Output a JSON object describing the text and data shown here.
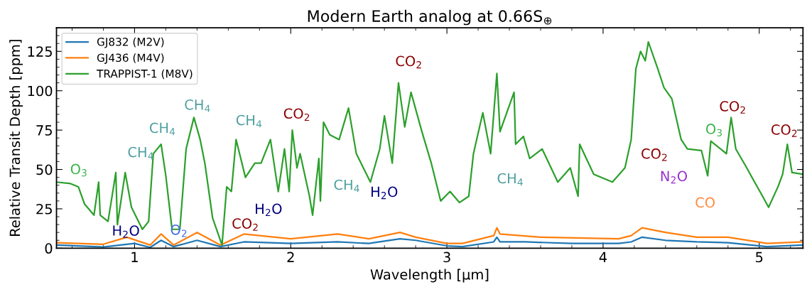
{
  "chart_data": {
    "type": "line",
    "title": "Modern Earth analog at 0.66S$_{⊕}$",
    "xlabel": "Wavelength [μm]",
    "ylabel": "Relative Transit Depth [ppm]",
    "xlim": [
      0.5,
      5.28
    ],
    "ylim": [
      0,
      140
    ],
    "xticks": [
      1,
      2,
      3,
      4,
      5
    ],
    "yticks": [
      0,
      25,
      50,
      75,
      100,
      125
    ],
    "grid": false,
    "legend": "top left",
    "series": [
      {
        "name": "GJ832 (M2V)",
        "color": "#1f77b4",
        "x": [
          0.5,
          0.8,
          1.0,
          1.1,
          1.17,
          1.25,
          1.4,
          1.55,
          1.7,
          2.0,
          2.3,
          2.5,
          2.7,
          2.8,
          3.0,
          3.1,
          3.3,
          3.32,
          3.34,
          3.5,
          3.8,
          4.1,
          4.18,
          4.25,
          4.4,
          4.6,
          4.8,
          5.05,
          5.28
        ],
        "values": [
          2,
          0.8,
          3,
          0.5,
          5,
          1,
          5,
          1,
          4,
          3,
          4,
          3,
          6,
          5,
          1.5,
          1,
          4,
          7,
          4,
          4,
          3,
          3,
          4,
          7,
          5,
          4,
          3.5,
          1,
          2
        ]
      },
      {
        "name": "GJ436 (M4V)",
        "color": "#ff7f0e",
        "x": [
          0.5,
          0.8,
          0.95,
          1.1,
          1.17,
          1.25,
          1.4,
          1.55,
          1.7,
          2.0,
          2.3,
          2.5,
          2.7,
          2.8,
          3.0,
          3.1,
          3.3,
          3.32,
          3.34,
          3.6,
          4.1,
          4.18,
          4.25,
          4.4,
          4.6,
          4.8,
          5.05,
          5.28
        ],
        "values": [
          3.5,
          2.5,
          7,
          2,
          9,
          2,
          10,
          2,
          9,
          6,
          9,
          6,
          10,
          7,
          3,
          3,
          8,
          13,
          9,
          7,
          6,
          8,
          13,
          10,
          7,
          7,
          3,
          4
        ]
      },
      {
        "name": "TRAPPIST-1 (M8V)",
        "color": "#2ca02c",
        "x": [
          0.5,
          0.59,
          0.64,
          0.68,
          0.74,
          0.77,
          0.78,
          0.83,
          0.88,
          0.89,
          0.94,
          0.98,
          1.05,
          1.09,
          1.12,
          1.17,
          1.2,
          1.24,
          1.29,
          1.33,
          1.38,
          1.42,
          1.45,
          1.5,
          1.56,
          1.59,
          1.62,
          1.65,
          1.71,
          1.77,
          1.81,
          1.87,
          1.92,
          1.96,
          1.99,
          2.01,
          2.04,
          2.06,
          2.12,
          2.14,
          2.18,
          2.19,
          2.21,
          2.25,
          2.31,
          2.37,
          2.42,
          2.48,
          2.51,
          2.57,
          2.6,
          2.65,
          2.69,
          2.73,
          2.77,
          2.84,
          2.9,
          2.96,
          3.02,
          3.08,
          3.14,
          3.17,
          3.23,
          3.28,
          3.32,
          3.34,
          3.43,
          3.44,
          3.49,
          3.53,
          3.61,
          3.71,
          3.79,
          3.84,
          3.85,
          3.94,
          4.06,
          4.14,
          4.18,
          4.21,
          4.24,
          4.27,
          4.29,
          4.35,
          4.39,
          4.44,
          4.5,
          4.54,
          4.63,
          4.67,
          4.69,
          4.79,
          4.82,
          4.85,
          4.92,
          4.97,
          5.01,
          5.06,
          5.12,
          5.15,
          5.18,
          5.21,
          5.28
        ],
        "values": [
          42,
          41,
          39,
          28,
          21,
          42,
          21,
          17,
          48,
          15,
          48,
          26,
          12,
          17,
          60,
          66,
          46,
          12,
          12,
          63,
          83,
          69,
          54,
          19,
          2,
          39,
          36,
          69,
          45,
          54,
          54,
          69,
          36,
          63,
          36,
          75,
          51,
          60,
          33,
          21,
          57,
          30,
          80,
          72,
          69,
          89,
          60,
          48,
          42,
          63,
          84,
          54,
          105,
          77,
          99,
          74,
          54,
          30,
          36,
          29,
          33,
          60,
          86,
          60,
          111,
          74,
          99,
          66,
          71,
          57,
          63,
          42,
          51,
          33,
          66,
          47,
          42,
          51,
          69,
          114,
          125,
          119,
          131,
          114,
          102,
          95,
          69,
          63,
          62,
          46,
          68,
          60,
          83,
          63,
          51,
          42,
          35,
          26,
          39,
          47,
          66,
          48,
          47
        ]
      }
    ],
    "annotations": [
      "O$_{3}$",
      "CH$_{4}$",
      "CH$_{4}$",
      "CH$_{4}$",
      "CH$_{4}$",
      "CO$_{2}$",
      "CO$_{2}$",
      "CH$_{4}$",
      "H$_{2}$O",
      "CH$_{4}$",
      "H$_{2}$O",
      "CO$_{2}$",
      "H$_{2}$O",
      "O$_{2}$",
      "CO$_{2}$",
      "N$_{2}$O",
      "CO",
      "O$_{3}$",
      "CO$_{2}$",
      "CO$_{2}$"
    ]
  }
}
